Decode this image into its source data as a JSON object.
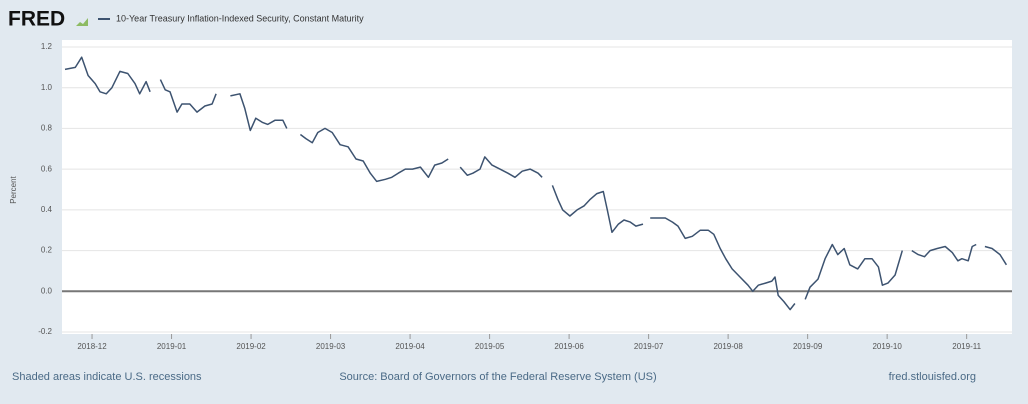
{
  "chart_data": {
    "type": "line",
    "brand": "FRED",
    "ylabel": "Percent",
    "footer_left": "Shaded areas indicate U.S. recessions",
    "footer_center": "Source: Board of Governors of the Federal Reserve System (US)",
    "footer_right": "fred.stlouisfed.org",
    "grid": true,
    "x": [
      -0.34,
      -0.21,
      -0.13,
      -0.05,
      0.04,
      0.1,
      0.18,
      0.25,
      0.35,
      0.45,
      0.54,
      0.6,
      0.68,
      0.73,
      0.79,
      0.86,
      0.92,
      0.98,
      1.07,
      1.13,
      1.23,
      1.32,
      1.42,
      1.51,
      1.56,
      1.65,
      1.74,
      1.86,
      1.92,
      1.99,
      2.06,
      2.14,
      2.21,
      2.3,
      2.4,
      2.45,
      2.54,
      2.62,
      2.69,
      2.77,
      2.84,
      2.93,
      3.02,
      3.12,
      3.22,
      3.32,
      3.41,
      3.5,
      3.58,
      3.69,
      3.77,
      3.85,
      3.94,
      4.03,
      4.13,
      4.23,
      4.31,
      4.4,
      4.48,
      4.55,
      4.63,
      4.72,
      4.79,
      4.88,
      4.94,
      5.03,
      5.13,
      5.23,
      5.32,
      5.41,
      5.51,
      5.61,
      5.66,
      5.72,
      5.79,
      5.86,
      5.92,
      6.01,
      6.1,
      6.19,
      6.26,
      6.35,
      6.43,
      6.48,
      6.54,
      6.62,
      6.69,
      6.77,
      6.84,
      6.93,
      6.97,
      7.02,
      7.12,
      7.21,
      7.3,
      7.37,
      7.46,
      7.55,
      7.65,
      7.75,
      7.82,
      7.9,
      7.97,
      8.05,
      8.15,
      8.25,
      8.31,
      8.38,
      8.47,
      8.55,
      8.59,
      8.63,
      8.7,
      8.78,
      8.84,
      8.91,
      8.97,
      9.03,
      9.13,
      9.22,
      9.31,
      9.38,
      9.46,
      9.53,
      9.63,
      9.72,
      9.81,
      9.89,
      9.94,
      10.01,
      10.1,
      10.19,
      10.25,
      10.31,
      10.39,
      10.47,
      10.54,
      10.63,
      10.73,
      10.82,
      10.89,
      10.94,
      11.02,
      11.07,
      11.12,
      11.17,
      11.23,
      11.32,
      11.42,
      11.5
    ],
    "series": [
      {
        "name": "10-Year Treasury Inflation-Indexed Security, Constant Maturity",
        "color": "#3d5370",
        "values": [
          1.09,
          1.1,
          1.15,
          1.06,
          1.02,
          0.98,
          0.97,
          1.0,
          1.08,
          1.07,
          1.02,
          0.97,
          1.03,
          0.98,
          null,
          1.04,
          0.99,
          0.98,
          0.88,
          0.92,
          0.92,
          0.88,
          0.91,
          0.92,
          0.97,
          null,
          0.96,
          0.97,
          0.9,
          0.79,
          0.85,
          0.83,
          0.82,
          0.84,
          0.84,
          0.8,
          null,
          0.77,
          0.75,
          0.73,
          0.78,
          0.8,
          0.78,
          0.72,
          0.71,
          0.65,
          0.64,
          0.58,
          0.54,
          0.55,
          0.56,
          0.58,
          0.6,
          0.6,
          0.61,
          0.56,
          0.62,
          0.63,
          0.65,
          null,
          0.61,
          0.57,
          0.58,
          0.6,
          0.66,
          0.62,
          0.6,
          0.58,
          0.56,
          0.59,
          0.6,
          0.58,
          0.56,
          null,
          0.52,
          0.45,
          0.4,
          0.37,
          0.4,
          0.42,
          0.45,
          0.48,
          0.49,
          0.4,
          0.29,
          0.33,
          0.35,
          0.34,
          0.32,
          0.33,
          null,
          0.36,
          0.36,
          0.36,
          0.34,
          0.32,
          0.26,
          0.27,
          0.3,
          0.3,
          0.28,
          0.21,
          0.16,
          0.11,
          0.07,
          0.03,
          0.0,
          0.03,
          0.04,
          0.05,
          0.07,
          -0.02,
          -0.05,
          -0.09,
          -0.06,
          null,
          -0.04,
          0.02,
          0.06,
          0.16,
          0.23,
          0.18,
          0.21,
          0.13,
          0.11,
          0.16,
          0.16,
          0.12,
          0.03,
          0.04,
          0.08,
          0.2,
          null,
          0.2,
          0.18,
          0.17,
          0.2,
          0.21,
          0.22,
          0.19,
          0.15,
          0.16,
          0.15,
          0.22,
          0.23,
          null,
          0.22,
          0.21,
          0.18,
          0.13
        ]
      }
    ],
    "xlim": [
      -0.34,
      11.52
    ],
    "xticks": [
      {
        "value": 0,
        "label": "2018-12"
      },
      {
        "value": 1,
        "label": "2019-01"
      },
      {
        "value": 2,
        "label": "2019-02"
      },
      {
        "value": 3,
        "label": "2019-03"
      },
      {
        "value": 4,
        "label": "2019-04"
      },
      {
        "value": 5,
        "label": "2019-05"
      },
      {
        "value": 6,
        "label": "2019-06"
      },
      {
        "value": 7,
        "label": "2019-07"
      },
      {
        "value": 8,
        "label": "2019-08"
      },
      {
        "value": 9,
        "label": "2019-09"
      },
      {
        "value": 10,
        "label": "2019-10"
      },
      {
        "value": 11,
        "label": "2019-11"
      }
    ],
    "ylim": [
      -0.2,
      1.2
    ],
    "yticks": [
      -0.2,
      {
        "value": 0,
        "label": "0.0"
      },
      0.2,
      0.4,
      0.6,
      0.8,
      {
        "value": 1,
        "label": "1.0"
      },
      1.2
    ]
  }
}
